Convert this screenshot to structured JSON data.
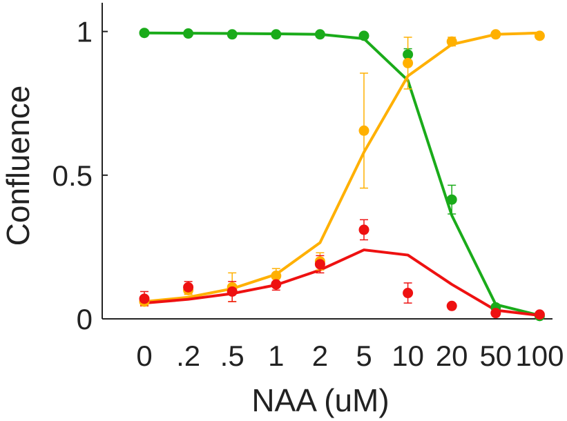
{
  "chart_data": {
    "type": "line",
    "title": "",
    "xlabel": "NAA (uM)",
    "ylabel": "Confluence",
    "categories": [
      "0",
      ".2",
      ".5",
      "1",
      "2",
      "5",
      "10",
      "20",
      "50",
      "100"
    ],
    "ylim": [
      0,
      1.1
    ],
    "yticks": [
      {
        "value": 0,
        "label": "0"
      },
      {
        "value": 0.5,
        "label": "0.5"
      },
      {
        "value": 1,
        "label": "1"
      }
    ],
    "grid": false,
    "legend": "none",
    "series": [
      {
        "color": "#1aab1a",
        "points": [
          0.995,
          0.993,
          0.99,
          0.99,
          0.99,
          0.985,
          0.92,
          0.415,
          0.04,
          0.01
        ],
        "error": [
          0.004,
          0.004,
          0.004,
          0.004,
          0.004,
          0.006,
          0.02,
          0.05,
          0.01,
          0.004
        ],
        "fit": [
          0.995,
          0.994,
          0.993,
          0.992,
          0.99,
          0.975,
          0.83,
          0.36,
          0.05,
          0.012
        ]
      },
      {
        "color": "#ffb000",
        "points": [
          0.06,
          0.1,
          0.11,
          0.15,
          0.2,
          0.655,
          0.89,
          0.965,
          0.99,
          0.985
        ],
        "error": [
          0.012,
          0.015,
          0.05,
          0.025,
          0.03,
          0.2,
          0.09,
          0.015,
          0.005,
          0.005
        ],
        "fit": [
          0.06,
          0.075,
          0.105,
          0.155,
          0.265,
          0.58,
          0.845,
          0.955,
          0.99,
          0.995
        ]
      },
      {
        "color": "#ee1111",
        "points": [
          0.07,
          0.11,
          0.095,
          0.12,
          0.19,
          0.31,
          0.09,
          0.045,
          0.02,
          0.015
        ],
        "error": [
          0.025,
          0.02,
          0.035,
          0.02,
          0.03,
          0.035,
          0.035,
          0.006,
          0.004,
          0.004
        ],
        "fit": [
          0.055,
          0.068,
          0.088,
          0.118,
          0.17,
          0.24,
          0.222,
          0.12,
          0.03,
          0.012
        ]
      }
    ]
  }
}
